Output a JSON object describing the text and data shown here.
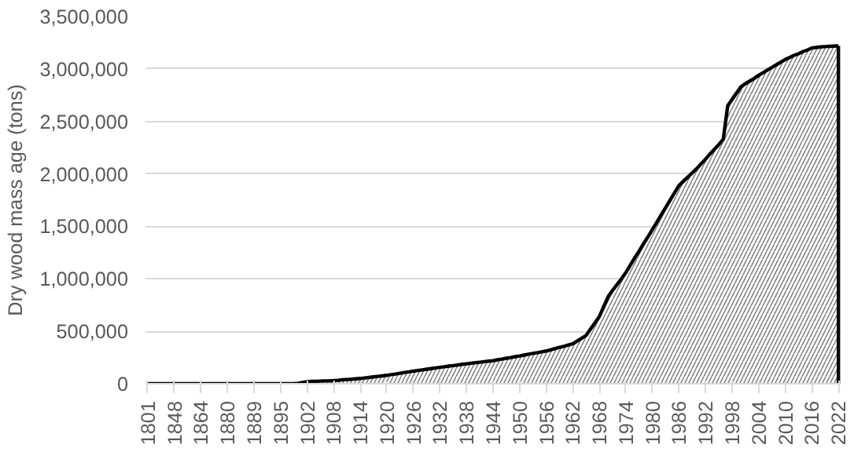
{
  "chart_data": {
    "type": "area",
    "ylabel": "Dry wood mass age (tons)",
    "categories": [
      "1801",
      null,
      null,
      null,
      null,
      null,
      "1848",
      null,
      null,
      null,
      null,
      null,
      "1864",
      null,
      null,
      null,
      null,
      null,
      "1880",
      null,
      null,
      null,
      null,
      null,
      "1889",
      null,
      null,
      null,
      null,
      null,
      "1895",
      null,
      null,
      null,
      null,
      null,
      "1902",
      null,
      null,
      null,
      null,
      null,
      "1908",
      null,
      null,
      null,
      null,
      null,
      "1914",
      null,
      null,
      null,
      null,
      null,
      "1920",
      null,
      null,
      null,
      null,
      null,
      "1926",
      null,
      null,
      null,
      null,
      null,
      "1932",
      null,
      null,
      null,
      null,
      null,
      "1938",
      null,
      null,
      null,
      null,
      null,
      "1944",
      null,
      null,
      null,
      null,
      null,
      "1950",
      null,
      null,
      null,
      null,
      null,
      "1956",
      null,
      null,
      null,
      null,
      null,
      "1962",
      null,
      null,
      null,
      null,
      null,
      "1968",
      null,
      null,
      null,
      null,
      null,
      "1974",
      null,
      null,
      null,
      null,
      null,
      "1980",
      null,
      null,
      null,
      null,
      null,
      "1986",
      null,
      null,
      null,
      null,
      null,
      "1992",
      null,
      null,
      null,
      null,
      null,
      "1998",
      null,
      null,
      null,
      null,
      null,
      "2004",
      null,
      null,
      null,
      null,
      null,
      "2010",
      null,
      null,
      null,
      null,
      null,
      "2016",
      null,
      null,
      null,
      null,
      null,
      "2022"
    ],
    "series": [
      {
        "color": "#000000",
        "values": [
          0,
          0,
          0,
          0,
          0,
          0,
          0,
          0,
          0,
          0,
          0,
          0,
          0,
          0,
          0,
          0,
          0,
          0,
          0,
          0,
          0,
          0,
          0,
          0,
          0,
          0,
          0,
          0,
          0,
          0,
          0,
          0,
          0,
          0,
          5000,
          12000,
          20000,
          22000,
          23000,
          25000,
          27000,
          28000,
          30000,
          33000,
          37000,
          40000,
          43000,
          47000,
          50000,
          55000,
          60000,
          65000,
          70000,
          75000,
          80000,
          87000,
          93000,
          100000,
          107000,
          113000,
          120000,
          126000,
          132000,
          138000,
          144000,
          150000,
          156000,
          162000,
          168000,
          173000,
          179000,
          185000,
          190000,
          195000,
          200000,
          205000,
          210000,
          215000,
          220000,
          228000,
          235000,
          243000,
          250000,
          258000,
          265000,
          273000,
          281000,
          289000,
          296000,
          304000,
          312000,
          323000,
          335000,
          346000,
          357000,
          369000,
          380000,
          407000,
          433000,
          460000,
          520000,
          580000,
          640000,
          735000,
          830000,
          890000,
          945000,
          1000000,
          1060000,
          1130000,
          1200000,
          1265000,
          1335000,
          1400000,
          1470000,
          1540000,
          1610000,
          1680000,
          1750000,
          1820000,
          1890000,
          1930000,
          1970000,
          2010000,
          2050000,
          2095000,
          2140000,
          2190000,
          2235000,
          2280000,
          2330000,
          2650000,
          2710000,
          2770000,
          2830000,
          2860000,
          2885000,
          2910000,
          2940000,
          2965000,
          2990000,
          3015000,
          3040000,
          3065000,
          3090000,
          3110000,
          3130000,
          3145000,
          3165000,
          3180000,
          3200000,
          3205000,
          3210000,
          3213000,
          3216000,
          3218000,
          3220000
        ]
      }
    ],
    "ylim": [
      0,
      3500000
    ],
    "yticks": [
      0,
      {
        "value": 500000,
        "label": "500,000"
      },
      {
        "value": 1000000,
        "label": "1,000,000"
      },
      {
        "value": 1500000,
        "label": "1,500,000"
      },
      {
        "value": 2000000,
        "label": "2,000,000"
      },
      {
        "value": 2500000,
        "label": "2,500,000"
      },
      {
        "value": 3000000,
        "label": "3,000,000"
      },
      {
        "value": 3500000,
        "label": "3,500,000"
      }
    ],
    "grid": "y"
  }
}
